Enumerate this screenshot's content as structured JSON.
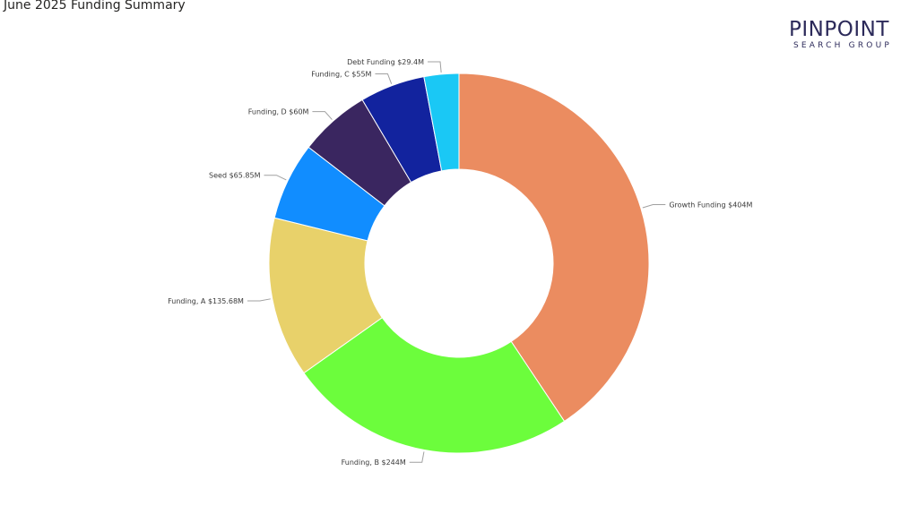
{
  "report": {
    "title": "June 2025 Funding Summary"
  },
  "logo": {
    "main": "PINPOINT",
    "sub": "SEARCH GROUP",
    "color": "#2c2a5a"
  },
  "chart_data": {
    "type": "pie",
    "variant": "donut",
    "title": "",
    "legend": "none",
    "slices": [
      {
        "category": "Growth Funding",
        "value": 404,
        "label": "Growth Funding $404M",
        "color": "#eb8c60"
      },
      {
        "category": "Funding, B",
        "value": 244,
        "label": "Funding, B $244M",
        "color": "#6cfd3c"
      },
      {
        "category": "Funding, A",
        "value": 135.68,
        "label": "Funding, A $135.68M",
        "color": "#e8d16a"
      },
      {
        "category": "Seed",
        "value": 65.85,
        "label": "Seed $65.85M",
        "color": "#118dff"
      },
      {
        "category": "Funding, D",
        "value": 60,
        "label": "Funding, D $60M",
        "color": "#3a2660"
      },
      {
        "category": "Funding, C",
        "value": 55,
        "label": "Funding, C $55M",
        "color": "#12239e"
      },
      {
        "category": "Debt Funding",
        "value": 29.4,
        "label": "Debt Funding $29.4M",
        "color": "#1ac8f5"
      }
    ]
  }
}
